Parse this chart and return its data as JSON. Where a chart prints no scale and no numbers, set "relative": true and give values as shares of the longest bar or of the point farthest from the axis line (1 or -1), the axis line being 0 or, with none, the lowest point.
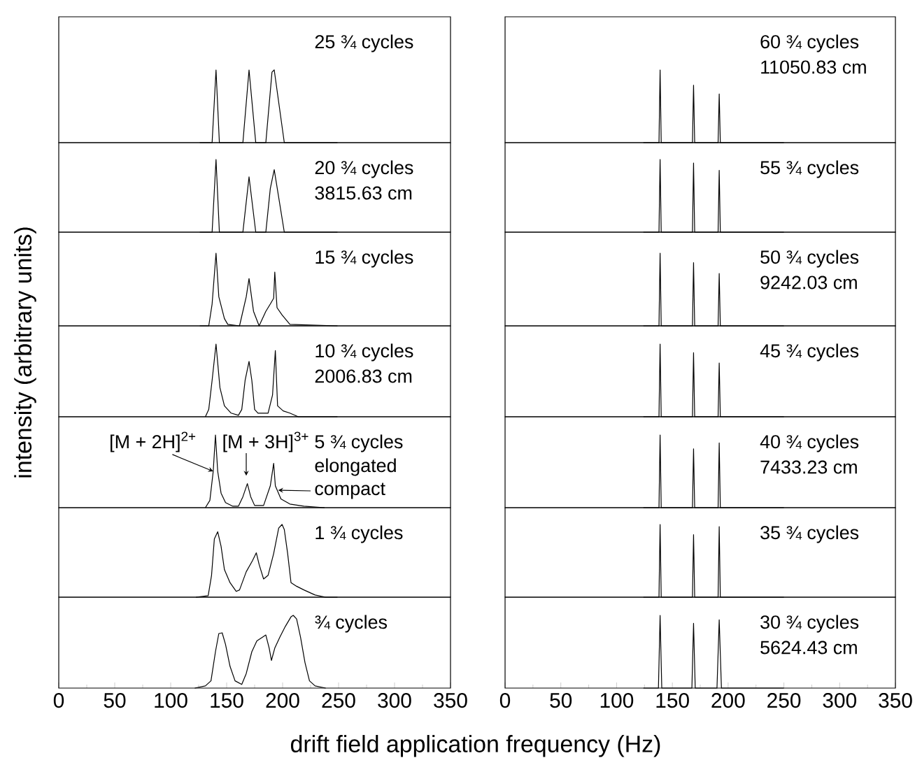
{
  "chart_data": [
    {
      "type": "line",
      "relative": true,
      "color": "#000000",
      "marker": "none",
      "xlim": [
        0,
        350
      ],
      "xticks": [
        0,
        50,
        100,
        150,
        200,
        250,
        300,
        350
      ],
      "tick_labels": false,
      "annotations": [
        "25 ¾ cycles"
      ],
      "x": [
        126,
        137,
        140.5,
        143.5,
        164.5,
        170,
        176,
        185,
        190.5,
        192.5,
        201.5,
        249
      ],
      "values": [
        0,
        0,
        1,
        0,
        0,
        1,
        0,
        0,
        0.97,
        1,
        0,
        0
      ]
    },
    {
      "type": "line",
      "relative": true,
      "color": "#000000",
      "marker": "none",
      "xlim": [
        0,
        350
      ],
      "xticks": [
        0,
        50,
        100,
        150,
        200,
        250,
        300,
        350
      ],
      "tick_labels": false,
      "annotations": [
        "20 ¾ cycles",
        "3815.63 cm"
      ],
      "x": [
        126,
        137,
        140.5,
        143.5,
        164.5,
        170,
        176,
        185,
        189,
        192.5,
        201.5,
        249
      ],
      "values": [
        0,
        0,
        1,
        0,
        0,
        0.76,
        0,
        0,
        0.6,
        0.86,
        0,
        0
      ]
    },
    {
      "type": "line",
      "relative": true,
      "color": "#000000",
      "marker": "none",
      "xlim": [
        0,
        350
      ],
      "xticks": [
        0,
        50,
        100,
        150,
        200,
        250,
        300,
        350
      ],
      "tick_labels": false,
      "annotations": [
        "15 ¾ cycles"
      ],
      "x": [
        126,
        134,
        137,
        140.5,
        143,
        148,
        151,
        161.5,
        167.5,
        170,
        174,
        179,
        185,
        189,
        192,
        193,
        195,
        199.5,
        206.5,
        249
      ],
      "values": [
        0,
        0,
        0.3,
        1,
        0.4,
        0.1,
        0.02,
        0,
        0.4,
        0.65,
        0.2,
        0,
        0.2,
        0.3,
        0.38,
        0.74,
        0.25,
        0.15,
        0.02,
        0
      ]
    },
    {
      "type": "line",
      "relative": true,
      "color": "#000000",
      "marker": "none",
      "xlim": [
        0,
        350
      ],
      "xticks": [
        0,
        50,
        100,
        150,
        200,
        250,
        300,
        350
      ],
      "tick_labels": false,
      "ylabel": "intensity (arbitrary units)",
      "annotations": [
        "10 ¾ cycles",
        "2006.83 cm"
      ],
      "x": [
        131,
        134,
        137,
        140.5,
        144,
        148,
        154,
        160.5,
        163.5,
        166.5,
        170,
        172.5,
        175,
        178,
        187,
        191,
        193.5,
        195.5,
        200.5,
        206.5,
        214,
        249
      ],
      "values": [
        0,
        0.1,
        0.5,
        1,
        0.4,
        0.15,
        0.05,
        0.02,
        0.1,
        0.5,
        0.76,
        0.5,
        0.1,
        0.05,
        0.05,
        0.3,
        0.91,
        0.15,
        0.08,
        0.05,
        0,
        0
      ]
    },
    {
      "type": "line",
      "relative": true,
      "color": "#000000",
      "marker": "none",
      "xlim": [
        0,
        350
      ],
      "xticks": [
        0,
        50,
        100,
        150,
        200,
        250,
        300,
        350
      ],
      "tick_labels": false,
      "annotations": [
        "5 ¾ cycles",
        {
          "text": "[M + 2H]$^{2+}$",
          "x": 138,
          "y": 0.5
        },
        {
          "text": "[M + 3H]$^{3+}$",
          "x": 167.5,
          "y": 0.44
        },
        "elongated",
        {
          "text": "compact",
          "x": 196,
          "y": 0.24
        }
      ],
      "x": [
        131,
        135,
        138,
        140,
        142,
        145,
        149,
        155.5,
        160.5,
        164.5,
        168.5,
        171.5,
        175,
        183,
        189,
        192,
        193.5,
        198.5,
        206.5,
        219,
        237.5
      ],
      "values": [
        0,
        0.1,
        0.5,
        1,
        0.5,
        0.2,
        0.07,
        0.02,
        0.02,
        0.15,
        0.33,
        0.15,
        0.03,
        0.03,
        0.3,
        0.61,
        0.3,
        0.12,
        0.05,
        0.02,
        0
      ]
    },
    {
      "type": "line",
      "relative": true,
      "color": "#000000",
      "marker": "none",
      "xlim": [
        0,
        350
      ],
      "xticks": [
        0,
        50,
        100,
        150,
        200,
        250,
        300,
        350
      ],
      "tick_labels": false,
      "annotations": [
        "1 ¾ cycles"
      ],
      "x": [
        122.5,
        133.5,
        136.5,
        139,
        142,
        145,
        148,
        153,
        158.5,
        161.5,
        167.5,
        173,
        176.5,
        179,
        183,
        187,
        192,
        196.5,
        199.5,
        201.5,
        204.5,
        207.5,
        212.5,
        219,
        229,
        238.5,
        249
      ],
      "values": [
        0,
        0.02,
        0.3,
        0.8,
        0.9,
        0.7,
        0.38,
        0.2,
        0.08,
        0.1,
        0.35,
        0.5,
        0.61,
        0.45,
        0.25,
        0.3,
        0.6,
        0.95,
        1,
        0.93,
        0.6,
        0.2,
        0.15,
        0.1,
        0.03,
        0,
        0
      ]
    },
    {
      "type": "line",
      "relative": true,
      "color": "#000000",
      "marker": "none",
      "xlim": [
        0,
        350
      ],
      "xticks": [
        0,
        50,
        100,
        150,
        200,
        250,
        300,
        350
      ],
      "tick_labels": "x",
      "xlabel": "drift field application frequency (Hz)",
      "annotations": [
        "¾ cycles"
      ],
      "x": [
        121.5,
        131,
        136,
        140,
        143,
        146,
        149,
        153,
        157.5,
        163.5,
        167.5,
        172.5,
        177,
        182,
        185,
        188,
        190,
        193,
        197.5,
        202.5,
        207.5,
        209.5,
        212.5,
        216,
        220,
        224,
        229,
        238.5
      ],
      "values": [
        0,
        0.03,
        0.1,
        0.5,
        0.75,
        0.76,
        0.6,
        0.3,
        0.1,
        0.05,
        0.2,
        0.5,
        0.65,
        0.7,
        0.73,
        0.55,
        0.38,
        0.55,
        0.7,
        0.85,
        0.98,
        1,
        0.95,
        0.7,
        0.35,
        0.1,
        0.03,
        0
      ]
    },
    {
      "type": "line",
      "relative": true,
      "color": "#000000",
      "marker": "none",
      "xlim": [
        0,
        350
      ],
      "xticks": [
        0,
        50,
        100,
        150,
        200,
        250,
        300,
        350
      ],
      "tick_labels": false,
      "annotations": [
        "60 ¾ cycles",
        "11050.83 cm"
      ],
      "x": [
        124,
        138,
        139,
        140,
        168,
        169,
        170,
        191,
        192,
        193,
        250
      ],
      "values": [
        0,
        0,
        1,
        0,
        0,
        0.79,
        0,
        0,
        0.67,
        0,
        0
      ]
    },
    {
      "type": "line",
      "relative": true,
      "color": "#000000",
      "marker": "none",
      "xlim": [
        0,
        350
      ],
      "xticks": [
        0,
        50,
        100,
        150,
        200,
        250,
        300,
        350
      ],
      "tick_labels": false,
      "annotations": [
        "55 ¾ cycles"
      ],
      "x": [
        124,
        138,
        139,
        140,
        168,
        169,
        170,
        191,
        192,
        193,
        250
      ],
      "values": [
        0,
        0,
        1,
        0,
        0,
        0.95,
        0,
        0,
        0.85,
        0,
        0
      ]
    },
    {
      "type": "line",
      "relative": true,
      "color": "#000000",
      "marker": "none",
      "xlim": [
        0,
        350
      ],
      "xticks": [
        0,
        50,
        100,
        150,
        200,
        250,
        300,
        350
      ],
      "tick_labels": false,
      "annotations": [
        "50 ¾ cycles",
        "9242.03 cm"
      ],
      "x": [
        124,
        138,
        139,
        140,
        168,
        169,
        170,
        191,
        192,
        193,
        250
      ],
      "values": [
        0,
        0,
        1,
        0,
        0,
        0.87,
        0,
        0,
        0.72,
        0,
        0
      ]
    },
    {
      "type": "line",
      "relative": true,
      "color": "#000000",
      "marker": "none",
      "xlim": [
        0,
        350
      ],
      "xticks": [
        0,
        50,
        100,
        150,
        200,
        250,
        300,
        350
      ],
      "tick_labels": false,
      "annotations": [
        "45 ¾ cycles"
      ],
      "x": [
        124,
        138,
        139,
        140,
        168,
        169,
        170,
        191,
        192,
        193,
        250
      ],
      "values": [
        0,
        0,
        1,
        0,
        0,
        0.88,
        0,
        0,
        0.74,
        0,
        0
      ]
    },
    {
      "type": "line",
      "relative": true,
      "color": "#000000",
      "marker": "none",
      "xlim": [
        0,
        350
      ],
      "xticks": [
        0,
        50,
        100,
        150,
        200,
        250,
        300,
        350
      ],
      "tick_labels": false,
      "annotations": [
        "40 ¾ cycles",
        "7433.23 cm"
      ],
      "x": [
        124,
        138,
        139,
        140,
        168,
        169,
        170,
        191,
        192,
        193,
        250
      ],
      "values": [
        0,
        0,
        1,
        0,
        0,
        0.81,
        0,
        0,
        0.89,
        0,
        0
      ]
    },
    {
      "type": "line",
      "relative": true,
      "color": "#000000",
      "marker": "none",
      "xlim": [
        0,
        350
      ],
      "xticks": [
        0,
        50,
        100,
        150,
        200,
        250,
        300,
        350
      ],
      "tick_labels": false,
      "annotations": [
        "35 ¾ cycles"
      ],
      "x": [
        124,
        138,
        139,
        140,
        168,
        169,
        170,
        191,
        192,
        193,
        250
      ],
      "values": [
        0,
        0,
        1,
        0,
        0,
        0.86,
        0,
        0,
        0.97,
        0,
        0
      ]
    },
    {
      "type": "line",
      "relative": true,
      "color": "#000000",
      "marker": "none",
      "xlim": [
        0,
        350
      ],
      "xticks": [
        0,
        50,
        100,
        150,
        200,
        250,
        300,
        350
      ],
      "tick_labels": "x",
      "annotations": [
        "30 ¾ cycles",
        "5624.43 cm"
      ],
      "x": [
        124,
        137.5,
        139,
        140.5,
        167.5,
        169,
        170.5,
        190,
        192,
        194,
        250
      ],
      "values": [
        0,
        0,
        1,
        0,
        0,
        0.89,
        0,
        0,
        0.94,
        0,
        0
      ]
    }
  ]
}
